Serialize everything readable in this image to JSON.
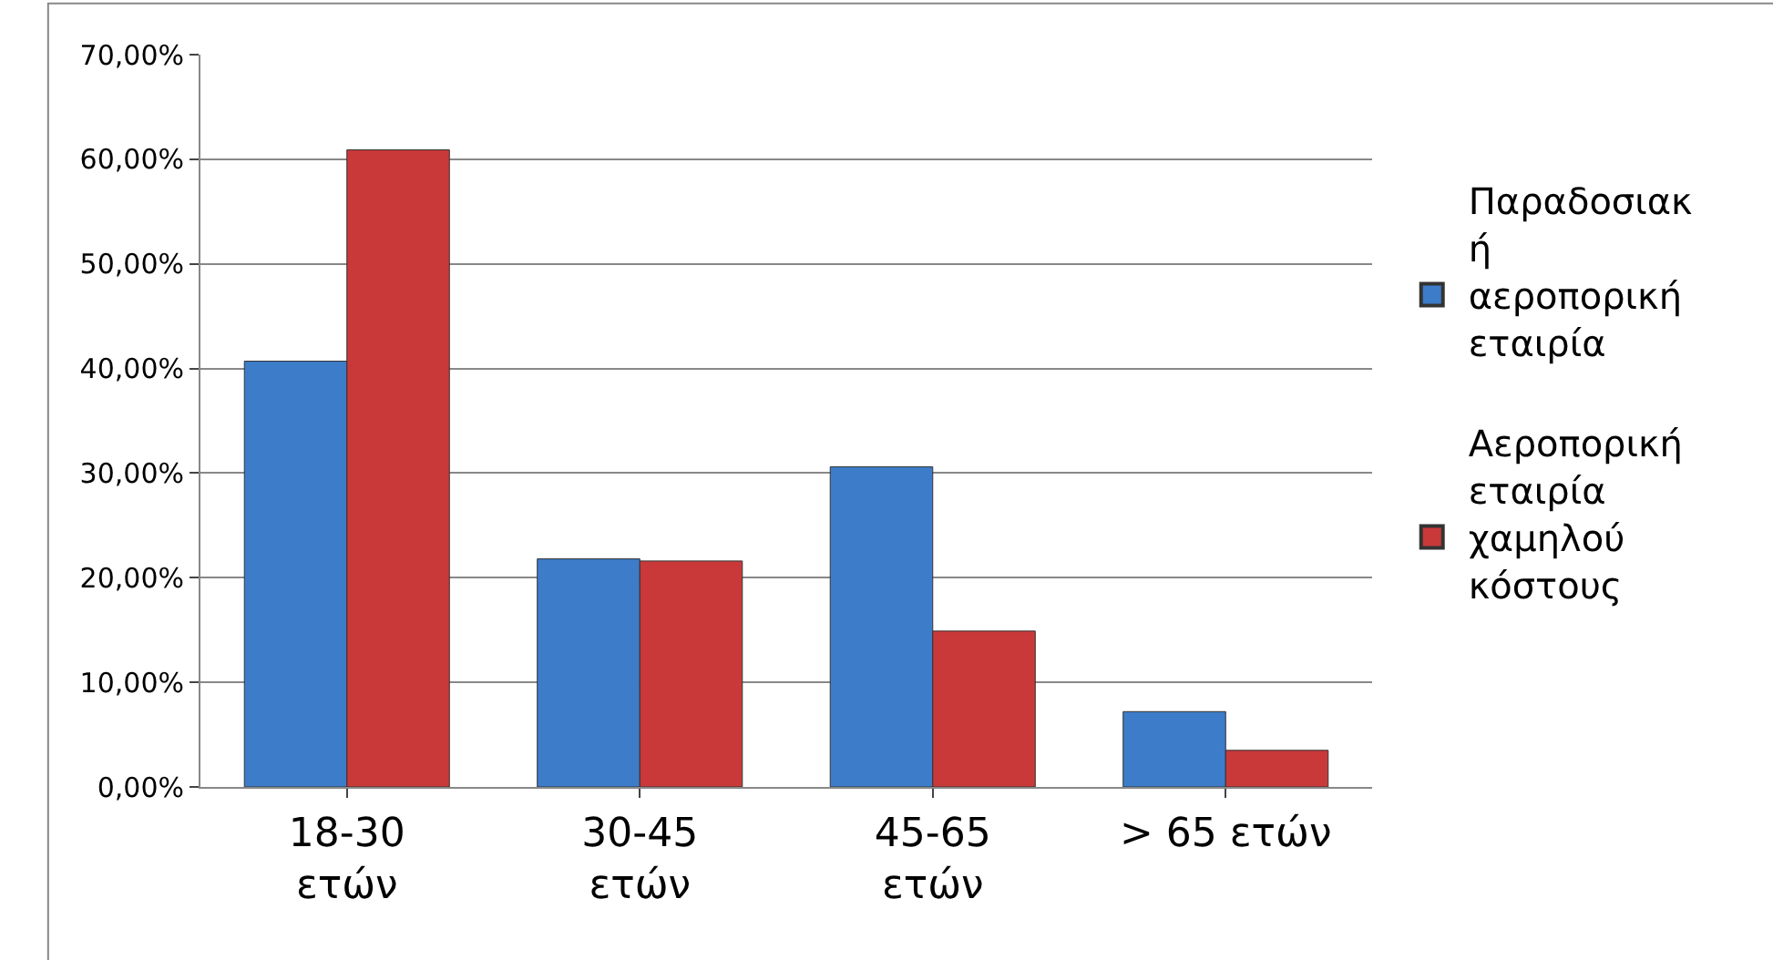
{
  "chart_data": {
    "type": "bar",
    "categories": [
      "18-30 ετών",
      "30-45 ετών",
      "45-65 ετών",
      "> 65 ετών"
    ],
    "series": [
      {
        "name": "Παραδοσιακή αεροπορική εταιρία",
        "color": "#3d7cc9",
        "values": [
          40.7,
          21.8,
          30.6,
          7.2
        ]
      },
      {
        "name": "Αεροπορική εταιρία χαμηλού κόστους",
        "color": "#c9393a",
        "values": [
          60.9,
          21.6,
          14.9,
          3.5
        ]
      }
    ],
    "ylim": [
      0,
      70
    ],
    "yticks": [
      {
        "value": 0,
        "label": "0,00%"
      },
      {
        "value": 10,
        "label": "10,00%"
      },
      {
        "value": 20,
        "label": "20,00%"
      },
      {
        "value": 30,
        "label": "30,00%"
      },
      {
        "value": 40,
        "label": "40,00%"
      },
      {
        "value": 50,
        "label": "50,00%"
      },
      {
        "value": 60,
        "label": "60,00%"
      },
      {
        "value": 70,
        "label": "70,00%"
      }
    ],
    "grid": "y",
    "legend": "right"
  }
}
